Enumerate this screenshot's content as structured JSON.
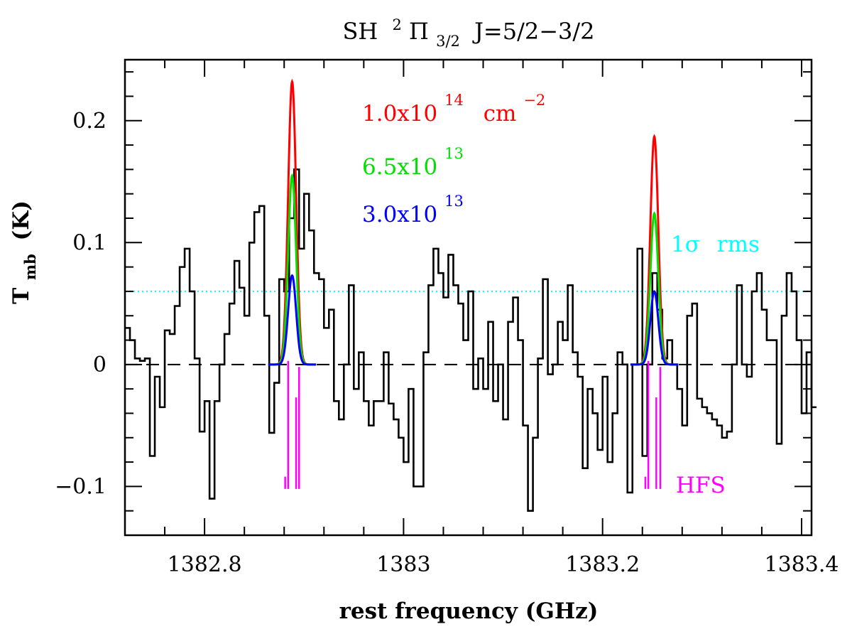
{
  "chart_data": {
    "type": "line",
    "title": {
      "species": "SH",
      "term_sup": "2",
      "term": "Π",
      "term_sub": "3/2",
      "transition": "J=5/2−3/2"
    },
    "xlabel": "rest frequency (GHz)",
    "ylabel": {
      "main": "T",
      "sub": "mb",
      "unit": "(K)"
    },
    "xlim": [
      1382.72,
      1383.41
    ],
    "ylim": [
      -0.14,
      0.25
    ],
    "x_ticks": [
      {
        "value": 1382.8,
        "label": "1382.8"
      },
      {
        "value": 1383.0,
        "label": "1383"
      },
      {
        "value": 1383.2,
        "label": "1383.2"
      },
      {
        "value": 1383.4,
        "label": "1383.4"
      }
    ],
    "y_ticks": [
      {
        "value": -0.1,
        "label": "−0.1"
      },
      {
        "value": 0.0,
        "label": "0"
      },
      {
        "value": 0.1,
        "label": "0.1"
      },
      {
        "value": 0.2,
        "label": "0.2"
      }
    ],
    "zero_line": 0,
    "rms_level": 0.06,
    "observed_spectrum": {
      "name": "observed",
      "color": "#000000",
      "style": "histogram",
      "x0": 1382.72,
      "dx": 0.005,
      "values": [
        0.03,
        0.02,
        0.005,
        0.003,
        0.005,
        -0.075,
        -0.01,
        -0.035,
        0.028,
        0.025,
        0.048,
        0.08,
        0.095,
        0.06,
        0.005,
        -0.055,
        -0.03,
        -0.11,
        -0.03,
        0.0,
        0.025,
        0.05,
        0.085,
        0.063,
        0.04,
        0.1,
        0.125,
        0.13,
        0.04,
        -0.056,
        -0.015,
        0.07,
        0.06,
        0.12,
        0.16,
        0.095,
        0.14,
        0.11,
        0.075,
        0.07,
        0.03,
        0.045,
        -0.03,
        -0.045,
        0.0,
        0.065,
        -0.02,
        0.01,
        -0.03,
        -0.05,
        -0.03,
        -0.03,
        0.01,
        -0.032,
        -0.045,
        -0.06,
        -0.08,
        -0.02,
        -0.1,
        -0.1,
        0.01,
        0.065,
        0.095,
        0.075,
        0.055,
        0.09,
        0.065,
        0.05,
        0.02,
        0.06,
        -0.02,
        0.005,
        -0.02,
        0.035,
        -0.03,
        0.0,
        -0.045,
        0.035,
        0.055,
        0.02,
        -0.05,
        -0.12,
        -0.06,
        0.005,
        0.07,
        -0.008,
        0.0,
        0.035,
        0.02,
        0.065,
        0.01,
        -0.01,
        -0.085,
        -0.02,
        -0.04,
        -0.07,
        -0.01,
        -0.08,
        -0.04,
        0.01,
        0.0,
        -0.105,
        0.0,
        0.095,
        -0.075,
        0.0,
        0.075,
        0.045,
        0.005,
        0.02,
        0.0,
        -0.02,
        -0.05,
        0.04,
        0.05,
        -0.028,
        -0.035,
        -0.04,
        -0.045,
        -0.05,
        -0.06,
        -0.055,
        0.0,
        0.065,
        0.0,
        -0.01,
        0.06,
        0.075,
        0.045,
        0.02,
        0.02,
        -0.065,
        0.04,
        0.075,
        0.06,
        0.02,
        -0.04,
        0.01,
        -0.035
      ]
    },
    "model_series": [
      {
        "name": "1.0x10^14 cm^-2",
        "color": "#ff0000",
        "peaks": [
          0.232,
          0.187
        ],
        "label": "1.0x10",
        "exp": "14",
        "unit": "cm",
        "unit_exp": "−2"
      },
      {
        "name": "6.5x10^13",
        "color": "#00e000",
        "peaks": [
          0.155,
          0.124
        ],
        "label": "6.5x10",
        "exp": "13"
      },
      {
        "name": "3.0x10^13",
        "color": "#0000ff",
        "peaks": [
          0.073,
          0.06
        ],
        "label": "3.0x10",
        "exp": "13"
      }
    ],
    "model_line_centers": [
      1382.888,
      1383.252
    ],
    "model_width_sigma": 0.004,
    "model_x_extent": [
      0.024,
      0.024
    ],
    "hfs_components": [
      {
        "freq": 1382.881,
        "strength": 0.01
      },
      {
        "freq": 1382.884,
        "strength": 0.105
      },
      {
        "freq": 1382.892,
        "strength": 0.075
      },
      {
        "freq": 1382.895,
        "strength": 0.1
      },
      {
        "freq": 1383.243,
        "strength": 0.01
      },
      {
        "freq": 1383.246,
        "strength": 0.105
      },
      {
        "freq": 1383.254,
        "strength": 0.075
      },
      {
        "freq": 1383.258,
        "strength": 0.1
      }
    ],
    "hfs_baseline": -0.102,
    "annotations": {
      "rms_label": {
        "sigma": "1σ",
        "text": "rms",
        "color": "#00ffff"
      },
      "hfs_label": {
        "text": "HFS",
        "color": "#ff00ff"
      }
    }
  }
}
